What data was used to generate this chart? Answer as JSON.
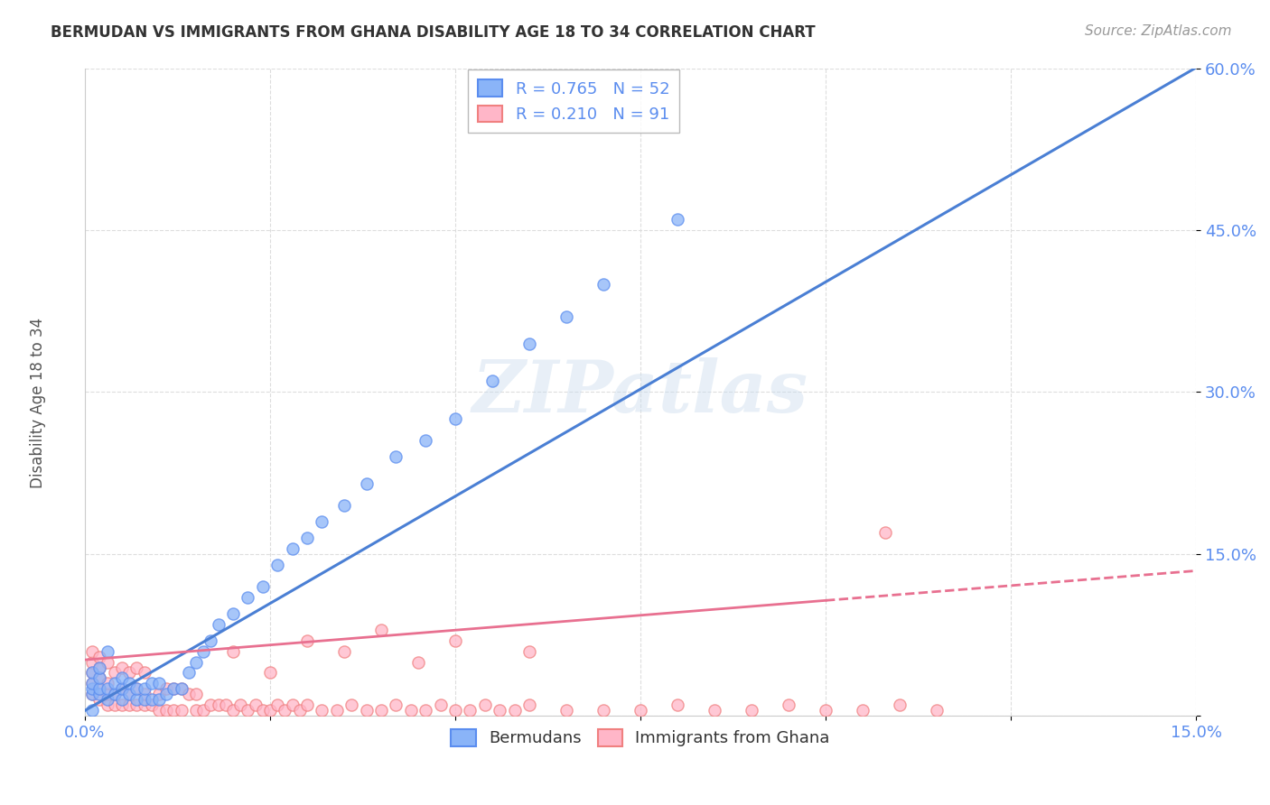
{
  "title": "BERMUDAN VS IMMIGRANTS FROM GHANA DISABILITY AGE 18 TO 34 CORRELATION CHART",
  "source": "Source: ZipAtlas.com",
  "ylabel": "Disability Age 18 to 34",
  "xlim": [
    0.0,
    0.15
  ],
  "ylim": [
    0.0,
    0.6
  ],
  "xticks": [
    0.0,
    0.025,
    0.05,
    0.075,
    0.1,
    0.125,
    0.15
  ],
  "yticks": [
    0.0,
    0.15,
    0.3,
    0.45,
    0.6
  ],
  "xticklabels": [
    "0.0%",
    "",
    "",
    "",
    "",
    "",
    "15.0%"
  ],
  "yticklabels": [
    "",
    "15.0%",
    "30.0%",
    "45.0%",
    "60.0%"
  ],
  "blue_R": 0.765,
  "blue_N": 52,
  "pink_R": 0.21,
  "pink_N": 91,
  "legend_label_blue": "Bermudans",
  "legend_label_pink": "Immigrants from Ghana",
  "blue_color": "#8AB4F8",
  "pink_color": "#FFB6C8",
  "blue_edge_color": "#5B8DEF",
  "pink_edge_color": "#F08080",
  "blue_line_color": "#4A7FD4",
  "pink_line_color": "#E87090",
  "grid_color": "#DDDDDD",
  "watermark": "ZIPatlas",
  "tick_color": "#5B8DEF",
  "blue_line_intercept": 0.005,
  "blue_line_slope": 3.97,
  "pink_line_intercept": 0.052,
  "pink_line_slope": 0.55,
  "blue_scatter_x": [
    0.001,
    0.001,
    0.001,
    0.001,
    0.002,
    0.002,
    0.002,
    0.002,
    0.003,
    0.003,
    0.003,
    0.004,
    0.004,
    0.005,
    0.005,
    0.005,
    0.006,
    0.006,
    0.007,
    0.007,
    0.008,
    0.008,
    0.009,
    0.009,
    0.01,
    0.01,
    0.011,
    0.012,
    0.013,
    0.014,
    0.015,
    0.016,
    0.017,
    0.018,
    0.02,
    0.022,
    0.024,
    0.026,
    0.028,
    0.03,
    0.032,
    0.035,
    0.038,
    0.042,
    0.046,
    0.05,
    0.055,
    0.06,
    0.065,
    0.07,
    0.08,
    0.001
  ],
  "blue_scatter_y": [
    0.02,
    0.025,
    0.03,
    0.04,
    0.02,
    0.025,
    0.035,
    0.045,
    0.015,
    0.025,
    0.06,
    0.02,
    0.03,
    0.015,
    0.025,
    0.035,
    0.02,
    0.03,
    0.015,
    0.025,
    0.015,
    0.025,
    0.015,
    0.03,
    0.015,
    0.03,
    0.02,
    0.025,
    0.025,
    0.04,
    0.05,
    0.06,
    0.07,
    0.085,
    0.095,
    0.11,
    0.12,
    0.14,
    0.155,
    0.165,
    0.18,
    0.195,
    0.215,
    0.24,
    0.255,
    0.275,
    0.31,
    0.345,
    0.37,
    0.4,
    0.46,
    0.005
  ],
  "pink_scatter_x": [
    0.001,
    0.001,
    0.001,
    0.001,
    0.001,
    0.002,
    0.002,
    0.002,
    0.002,
    0.002,
    0.003,
    0.003,
    0.003,
    0.003,
    0.004,
    0.004,
    0.004,
    0.005,
    0.005,
    0.005,
    0.006,
    0.006,
    0.006,
    0.007,
    0.007,
    0.007,
    0.008,
    0.008,
    0.008,
    0.009,
    0.01,
    0.01,
    0.011,
    0.011,
    0.012,
    0.012,
    0.013,
    0.013,
    0.014,
    0.015,
    0.015,
    0.016,
    0.017,
    0.018,
    0.019,
    0.02,
    0.021,
    0.022,
    0.023,
    0.024,
    0.025,
    0.026,
    0.027,
    0.028,
    0.029,
    0.03,
    0.032,
    0.034,
    0.036,
    0.038,
    0.04,
    0.042,
    0.044,
    0.046,
    0.048,
    0.05,
    0.052,
    0.054,
    0.056,
    0.058,
    0.06,
    0.065,
    0.07,
    0.075,
    0.08,
    0.085,
    0.09,
    0.095,
    0.1,
    0.105,
    0.108,
    0.11,
    0.115,
    0.02,
    0.025,
    0.03,
    0.035,
    0.04,
    0.045,
    0.05,
    0.06
  ],
  "pink_scatter_y": [
    0.02,
    0.03,
    0.04,
    0.05,
    0.06,
    0.015,
    0.025,
    0.035,
    0.045,
    0.055,
    0.01,
    0.02,
    0.03,
    0.05,
    0.01,
    0.02,
    0.04,
    0.01,
    0.025,
    0.045,
    0.01,
    0.02,
    0.04,
    0.01,
    0.025,
    0.045,
    0.01,
    0.02,
    0.04,
    0.01,
    0.005,
    0.02,
    0.005,
    0.025,
    0.005,
    0.025,
    0.005,
    0.025,
    0.02,
    0.005,
    0.02,
    0.005,
    0.01,
    0.01,
    0.01,
    0.005,
    0.01,
    0.005,
    0.01,
    0.005,
    0.005,
    0.01,
    0.005,
    0.01,
    0.005,
    0.01,
    0.005,
    0.005,
    0.01,
    0.005,
    0.005,
    0.01,
    0.005,
    0.005,
    0.01,
    0.005,
    0.005,
    0.01,
    0.005,
    0.005,
    0.01,
    0.005,
    0.005,
    0.005,
    0.01,
    0.005,
    0.005,
    0.01,
    0.005,
    0.005,
    0.17,
    0.01,
    0.005,
    0.06,
    0.04,
    0.07,
    0.06,
    0.08,
    0.05,
    0.07,
    0.06
  ]
}
